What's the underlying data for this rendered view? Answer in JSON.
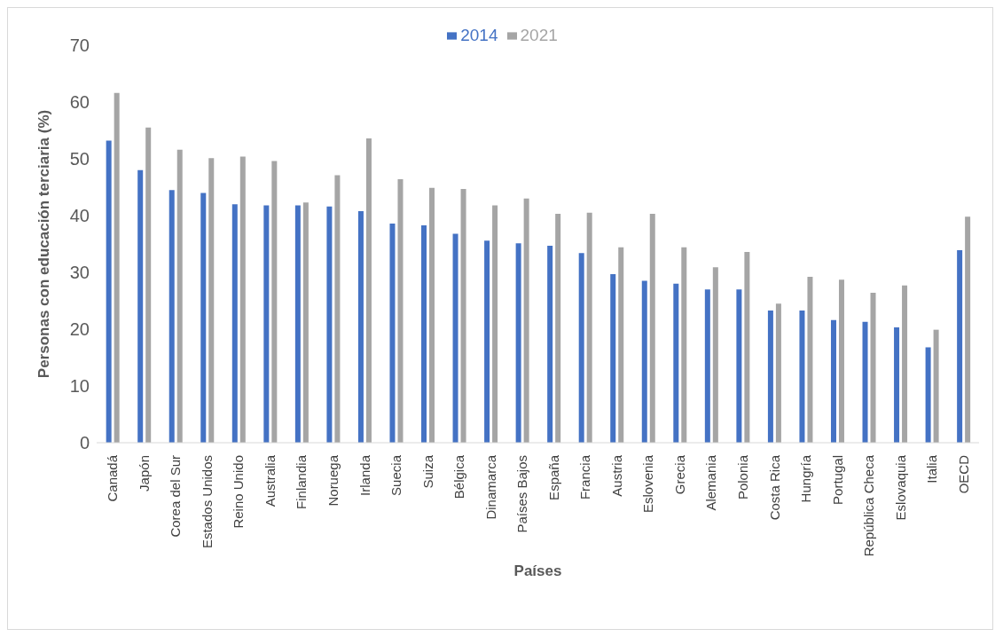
{
  "chart_data": {
    "type": "bar",
    "xlabel": "Países",
    "ylabel": "Personas con educación terciaria (%)",
    "categories": [
      "Canadá",
      "Japón",
      "Corea del Sur",
      "Estados Unidos",
      "Reino Unido",
      "Australia",
      "Finlandia",
      "Noruega",
      "Irlanda",
      "Suecia",
      "Suiza",
      "Bélgica",
      "Dinamarca",
      "Países Bajos",
      "España",
      "Francia",
      "Austria",
      "Eslovenia",
      "Grecia",
      "Alemania",
      "Polonia",
      "Costa Rica",
      "Hungría",
      "Portugal",
      "República Checa",
      "Eslovaquia",
      "Italia",
      "OECD"
    ],
    "series": [
      {
        "name": "2014",
        "color": "#4472c4",
        "values": [
          53.2,
          48,
          44.5,
          44,
          42,
          41.8,
          41.8,
          41.6,
          40.8,
          38.6,
          38.3,
          36.8,
          35.6,
          35.1,
          34.7,
          33.4,
          29.7,
          28.5,
          28,
          27,
          27,
          23.3,
          23.3,
          21.6,
          21.3,
          20.3,
          16.8,
          33.9
        ]
      },
      {
        "name": "2021",
        "color": "#a5a5a5",
        "values": [
          61.6,
          55.5,
          51.6,
          50.1,
          50.4,
          49.6,
          42.3,
          47.1,
          53.6,
          46.4,
          44.9,
          44.7,
          41.8,
          43,
          40.3,
          40.5,
          34.4,
          40.3,
          34.4,
          30.9,
          33.6,
          24.5,
          29.2,
          28.7,
          26.4,
          27.7,
          19.9,
          39.8
        ]
      }
    ],
    "ylim": [
      0,
      70
    ],
    "yticks": [
      0,
      10,
      20,
      30,
      40,
      50,
      60,
      70
    ],
    "grid": false,
    "legend": "top"
  }
}
